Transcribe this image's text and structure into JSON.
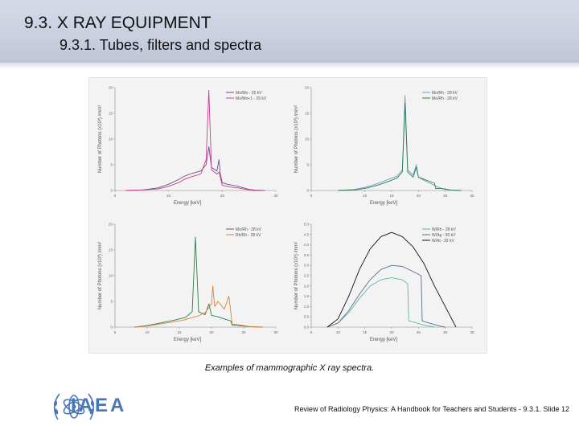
{
  "slide": {
    "title": "9.3. X RAY EQUIPMENT",
    "subtitle": "9.3.1. Tubes, filters and spectra",
    "caption": "Examples of mammographic X ray spectra.",
    "footer": "Review of Radiology Physics: A Handbook for Teachers and Students - 9.3.1. Slide 12",
    "logo_text": "IAEA",
    "colors": {
      "header": "#c9cfdf",
      "logo": "#4a76b8"
    }
  },
  "chart_data": [
    {
      "type": "line",
      "xlabel": "Energy [keV]",
      "ylabel": "Number of Photons (x10³) /mm²",
      "xlim": [
        0,
        30
      ],
      "ylim": [
        0,
        20
      ],
      "xticks": [
        "0",
        "10",
        "20",
        "30"
      ],
      "yticks": [
        "0",
        "5",
        "10",
        "15",
        "20"
      ],
      "legend_position": "top-right",
      "series": [
        {
          "name": "Mo/Mo - 25 kV",
          "color": "#6b4e8a",
          "x": [
            2,
            5,
            8,
            10,
            12,
            13,
            14,
            15,
            16,
            17,
            17.5,
            18,
            19,
            19.4,
            19.6,
            20,
            21,
            22,
            23,
            24,
            25,
            26,
            28
          ],
          "y": [
            0,
            0.1,
            0.5,
            1.2,
            2.2,
            2.8,
            3.2,
            3.5,
            3.8,
            5,
            8.5,
            4.5,
            3.8,
            6,
            3.5,
            1.5,
            1.2,
            1,
            0.8,
            0.5,
            0.2,
            0.1,
            0
          ]
        },
        {
          "name": "Mo/Mo+1 - 25 kV",
          "color": "#cc3d8f",
          "x": [
            2,
            5,
            8,
            10,
            12,
            13,
            14,
            15,
            16,
            17,
            17.5,
            18,
            19,
            19.4,
            19.6,
            20,
            21,
            22,
            23,
            24,
            25,
            26,
            28
          ],
          "y": [
            0,
            0.1,
            0.3,
            0.8,
            1.6,
            2.2,
            2.6,
            2.9,
            3.2,
            6,
            19.5,
            4,
            3.2,
            3.6,
            2.8,
            1,
            0.8,
            0.6,
            0.5,
            0.3,
            0.1,
            0,
            0
          ]
        }
      ]
    },
    {
      "type": "line",
      "xlabel": "Energy [keV]",
      "ylabel": "Number of Photons (x10³) /mm²",
      "xlim": [
        0,
        30
      ],
      "ylim": [
        0,
        20
      ],
      "xticks": [
        "0",
        "10",
        "15",
        "20",
        "25",
        "30"
      ],
      "yticks": [
        "0",
        "5",
        "10",
        "15",
        "20"
      ],
      "legend_position": "top-right",
      "series": [
        {
          "name": "Mo/Rh - 28 kV",
          "color": "#6aa0c9",
          "x": [
            5,
            8,
            10,
            12,
            14,
            15,
            16,
            17,
            17.5,
            18,
            19,
            19.6,
            20,
            21,
            22,
            23,
            24,
            25,
            26,
            28
          ],
          "y": [
            0,
            0.2,
            0.6,
            1.2,
            2,
            2.4,
            2.8,
            4,
            18.5,
            4,
            3,
            5,
            2.6,
            2,
            1.5,
            1,
            0.5,
            0.2,
            0.1,
            0
          ]
        },
        {
          "name": "Mo/Rh - 28 kV",
          "color": "#2d7a4b",
          "x": [
            5,
            8,
            10,
            12,
            14,
            15,
            16,
            17,
            17.5,
            18,
            19,
            19.6,
            20,
            21,
            22,
            23,
            23.2,
            24,
            25,
            26,
            28
          ],
          "y": [
            0,
            0.1,
            0.4,
            0.9,
            1.6,
            2,
            2.4,
            3.6,
            17,
            3.6,
            2.6,
            4.5,
            2.6,
            2.2,
            1.8,
            1.4,
            0.4,
            0.4,
            0.3,
            0.1,
            0
          ]
        }
      ]
    },
    {
      "type": "line",
      "xlabel": "Energy [keV]",
      "ylabel": "Number of Photons (x10³) /mm²",
      "xlim": [
        5,
        30
      ],
      "ylim": [
        0,
        20
      ],
      "xticks": [
        "5",
        "10",
        "15",
        "20",
        "25",
        "30"
      ],
      "yticks": [
        "0",
        "5",
        "10",
        "15",
        "20"
      ],
      "legend_position": "top-right",
      "series": [
        {
          "name": "Mo/Rh - 28 kV",
          "color": "#2d7a4b",
          "x": [
            8,
            10,
            12,
            14,
            15,
            16,
            17,
            17.5,
            18,
            19,
            19.6,
            20,
            21,
            22,
            23,
            23.2,
            24,
            26,
            28
          ],
          "y": [
            0,
            0.3,
            0.8,
            1.3,
            1.6,
            1.9,
            3,
            17.5,
            3,
            2.4,
            4.5,
            2.3,
            2,
            1.6,
            1.2,
            0.4,
            0.3,
            0.1,
            0
          ]
        },
        {
          "name": "Rh/Rh - 28 kV",
          "color": "#d9823d",
          "x": [
            8,
            10,
            12,
            14,
            15,
            16,
            18,
            19,
            20,
            20.2,
            20.5,
            21,
            22,
            22.7,
            23,
            23.2,
            24,
            25,
            26,
            28
          ],
          "y": [
            0,
            0.2,
            0.6,
            1,
            1.2,
            1.5,
            2.2,
            2.8,
            4.5,
            8,
            4,
            5,
            3.5,
            6,
            3,
            0.6,
            0.5,
            0.3,
            0.1,
            0
          ]
        }
      ]
    },
    {
      "type": "line",
      "xlabel": "Energy [keV]",
      "ylabel": "Number of Photons (x10³) /mm²",
      "xlim": [
        5,
        35
      ],
      "ylim": [
        0,
        5
      ],
      "xticks": [
        "5",
        "10",
        "15",
        "20",
        "25",
        "30",
        "35"
      ],
      "yticks": [
        "0.0",
        "0.5",
        "1.0",
        "1.5",
        "2.0",
        "2.5",
        "3.0",
        "3.5",
        "4.0",
        "4.5",
        "5.0"
      ],
      "legend_position": "top-right",
      "series": [
        {
          "name": "W/Rh - 28 kV",
          "color": "#5eb8a5",
          "x": [
            8,
            10,
            12,
            14,
            16,
            18,
            20,
            22,
            23,
            23.2,
            24,
            26,
            28
          ],
          "y": [
            0,
            0.2,
            0.7,
            1.4,
            2,
            2.3,
            2.4,
            2.3,
            2.1,
            0.3,
            0.25,
            0.1,
            0
          ]
        },
        {
          "name": "W/Ag - 30 kV",
          "color": "#5a6f93",
          "x": [
            8,
            10,
            12,
            14,
            16,
            18,
            20,
            22,
            24,
            25.5,
            25.7,
            27,
            29,
            30
          ],
          "y": [
            0,
            0.2,
            0.8,
            1.6,
            2.3,
            2.8,
            3,
            2.95,
            2.7,
            2.5,
            0.3,
            0.2,
            0.05,
            0
          ]
        },
        {
          "name": "W/Al - 32 kV",
          "color": "#111111",
          "x": [
            8,
            10,
            12,
            14,
            16,
            18,
            20,
            22,
            24,
            26,
            28,
            30,
            32
          ],
          "y": [
            0,
            0.4,
            1.5,
            2.8,
            3.8,
            4.4,
            4.6,
            4.4,
            3.9,
            3.1,
            2,
            1,
            0
          ]
        }
      ]
    }
  ]
}
